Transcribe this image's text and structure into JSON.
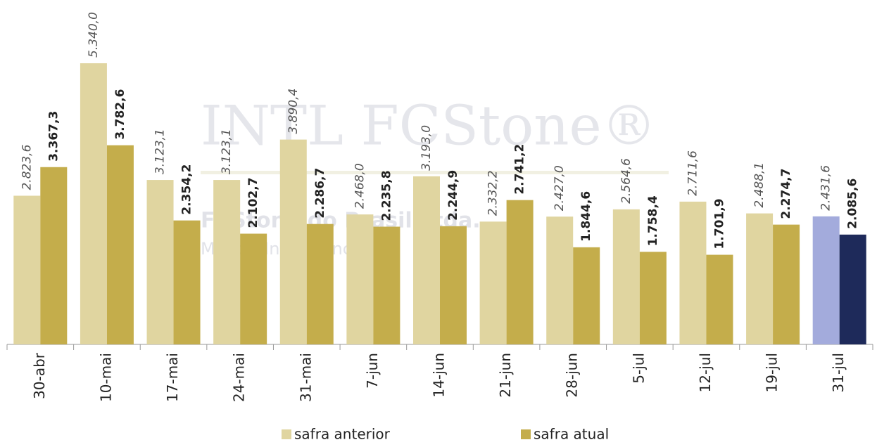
{
  "chart_data": {
    "type": "bar",
    "watermark": [
      "INTL FCStone®",
      "FCStone do Brasil Ltda.",
      "Market Intelligence"
    ],
    "categories": [
      "30-abr",
      "10-mai",
      "17-mai",
      "24-mai",
      "31-mai",
      "7-jun",
      "14-jun",
      "21-jun",
      "28-jun",
      "5-jul",
      "12-jul",
      "19-jul",
      "31-jul"
    ],
    "series": [
      {
        "name": "safra anterior",
        "color": "#e0d5a0",
        "colors": [
          "#e0d5a0",
          "#e0d5a0",
          "#e0d5a0",
          "#e0d5a0",
          "#e0d5a0",
          "#e0d5a0",
          "#e0d5a0",
          "#e0d5a0",
          "#e0d5a0",
          "#e0d5a0",
          "#e0d5a0",
          "#e0d5a0",
          "#a3abdc"
        ],
        "values": [
          2823.6,
          5340.0,
          3123.1,
          3123.1,
          3890.4,
          2468.0,
          3193.0,
          2332.2,
          2427.0,
          2564.6,
          2711.6,
          2488.1,
          2431.6
        ],
        "value_labels": [
          "2.823,6",
          "5.340,0",
          "3.123,1",
          "3.123,1",
          "3.890,4",
          "2.468,0",
          "3.193,0",
          "2.332,2",
          "2.427,0",
          "2.564,6",
          "2.711,6",
          "2.488,1",
          "2.431,6"
        ]
      },
      {
        "name": "safra atual",
        "color": "#c4ad4b",
        "colors": [
          "#c4ad4b",
          "#c4ad4b",
          "#c4ad4b",
          "#c4ad4b",
          "#c4ad4b",
          "#c4ad4b",
          "#c4ad4b",
          "#c4ad4b",
          "#c4ad4b",
          "#c4ad4b",
          "#c4ad4b",
          "#c4ad4b",
          "#1e2a5a"
        ],
        "values": [
          3367.3,
          3782.6,
          2354.2,
          2102.7,
          2286.7,
          2235.8,
          2244.9,
          2741.2,
          1844.6,
          1758.4,
          1701.9,
          2274.7,
          2085.6
        ],
        "value_labels": [
          "3.367,3",
          "3.782,6",
          "2.354,2",
          "2.102,7",
          "2.286,7",
          "2.235,8",
          "2.244,9",
          "2.741,2",
          "1.844,6",
          "1.758,4",
          "1.701,9",
          "2.274,7",
          "2.085,6"
        ]
      }
    ]
  }
}
